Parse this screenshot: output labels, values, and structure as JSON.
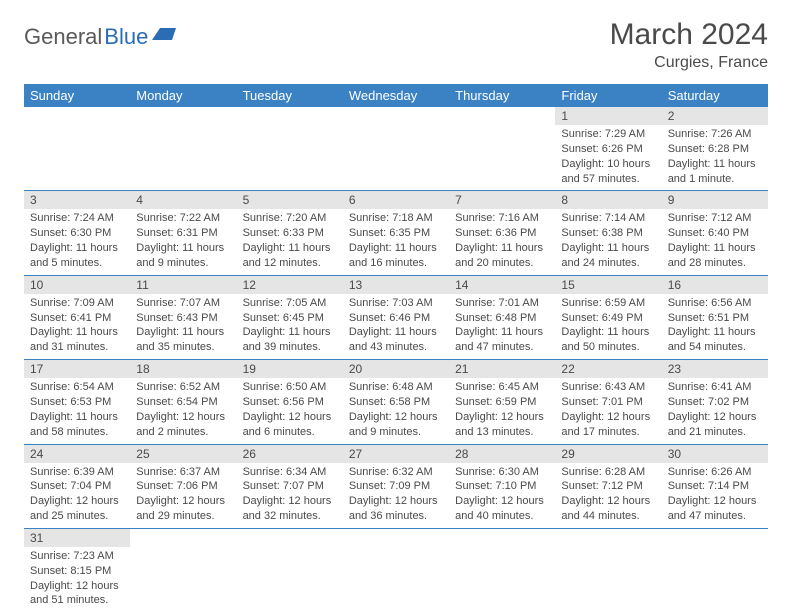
{
  "logo": {
    "general": "General",
    "blue": "Blue"
  },
  "title": "March 2024",
  "location": "Curgies, France",
  "colors": {
    "header_bg": "#3b82c4",
    "header_text": "#ffffff",
    "daynum_bg": "#e5e5e5",
    "text": "#4a4a4a",
    "border": "#3b82c4",
    "logo_blue": "#2a6db5"
  },
  "weekdays": [
    "Sunday",
    "Monday",
    "Tuesday",
    "Wednesday",
    "Thursday",
    "Friday",
    "Saturday"
  ],
  "weeks": [
    [
      {
        "day": "",
        "lines": []
      },
      {
        "day": "",
        "lines": []
      },
      {
        "day": "",
        "lines": []
      },
      {
        "day": "",
        "lines": []
      },
      {
        "day": "",
        "lines": []
      },
      {
        "day": "1",
        "lines": [
          "Sunrise: 7:29 AM",
          "Sunset: 6:26 PM",
          "Daylight: 10 hours and 57 minutes."
        ]
      },
      {
        "day": "2",
        "lines": [
          "Sunrise: 7:26 AM",
          "Sunset: 6:28 PM",
          "Daylight: 11 hours and 1 minute."
        ]
      }
    ],
    [
      {
        "day": "3",
        "lines": [
          "Sunrise: 7:24 AM",
          "Sunset: 6:30 PM",
          "Daylight: 11 hours and 5 minutes."
        ]
      },
      {
        "day": "4",
        "lines": [
          "Sunrise: 7:22 AM",
          "Sunset: 6:31 PM",
          "Daylight: 11 hours and 9 minutes."
        ]
      },
      {
        "day": "5",
        "lines": [
          "Sunrise: 7:20 AM",
          "Sunset: 6:33 PM",
          "Daylight: 11 hours and 12 minutes."
        ]
      },
      {
        "day": "6",
        "lines": [
          "Sunrise: 7:18 AM",
          "Sunset: 6:35 PM",
          "Daylight: 11 hours and 16 minutes."
        ]
      },
      {
        "day": "7",
        "lines": [
          "Sunrise: 7:16 AM",
          "Sunset: 6:36 PM",
          "Daylight: 11 hours and 20 minutes."
        ]
      },
      {
        "day": "8",
        "lines": [
          "Sunrise: 7:14 AM",
          "Sunset: 6:38 PM",
          "Daylight: 11 hours and 24 minutes."
        ]
      },
      {
        "day": "9",
        "lines": [
          "Sunrise: 7:12 AM",
          "Sunset: 6:40 PM",
          "Daylight: 11 hours and 28 minutes."
        ]
      }
    ],
    [
      {
        "day": "10",
        "lines": [
          "Sunrise: 7:09 AM",
          "Sunset: 6:41 PM",
          "Daylight: 11 hours and 31 minutes."
        ]
      },
      {
        "day": "11",
        "lines": [
          "Sunrise: 7:07 AM",
          "Sunset: 6:43 PM",
          "Daylight: 11 hours and 35 minutes."
        ]
      },
      {
        "day": "12",
        "lines": [
          "Sunrise: 7:05 AM",
          "Sunset: 6:45 PM",
          "Daylight: 11 hours and 39 minutes."
        ]
      },
      {
        "day": "13",
        "lines": [
          "Sunrise: 7:03 AM",
          "Sunset: 6:46 PM",
          "Daylight: 11 hours and 43 minutes."
        ]
      },
      {
        "day": "14",
        "lines": [
          "Sunrise: 7:01 AM",
          "Sunset: 6:48 PM",
          "Daylight: 11 hours and 47 minutes."
        ]
      },
      {
        "day": "15",
        "lines": [
          "Sunrise: 6:59 AM",
          "Sunset: 6:49 PM",
          "Daylight: 11 hours and 50 minutes."
        ]
      },
      {
        "day": "16",
        "lines": [
          "Sunrise: 6:56 AM",
          "Sunset: 6:51 PM",
          "Daylight: 11 hours and 54 minutes."
        ]
      }
    ],
    [
      {
        "day": "17",
        "lines": [
          "Sunrise: 6:54 AM",
          "Sunset: 6:53 PM",
          "Daylight: 11 hours and 58 minutes."
        ]
      },
      {
        "day": "18",
        "lines": [
          "Sunrise: 6:52 AM",
          "Sunset: 6:54 PM",
          "Daylight: 12 hours and 2 minutes."
        ]
      },
      {
        "day": "19",
        "lines": [
          "Sunrise: 6:50 AM",
          "Sunset: 6:56 PM",
          "Daylight: 12 hours and 6 minutes."
        ]
      },
      {
        "day": "20",
        "lines": [
          "Sunrise: 6:48 AM",
          "Sunset: 6:58 PM",
          "Daylight: 12 hours and 9 minutes."
        ]
      },
      {
        "day": "21",
        "lines": [
          "Sunrise: 6:45 AM",
          "Sunset: 6:59 PM",
          "Daylight: 12 hours and 13 minutes."
        ]
      },
      {
        "day": "22",
        "lines": [
          "Sunrise: 6:43 AM",
          "Sunset: 7:01 PM",
          "Daylight: 12 hours and 17 minutes."
        ]
      },
      {
        "day": "23",
        "lines": [
          "Sunrise: 6:41 AM",
          "Sunset: 7:02 PM",
          "Daylight: 12 hours and 21 minutes."
        ]
      }
    ],
    [
      {
        "day": "24",
        "lines": [
          "Sunrise: 6:39 AM",
          "Sunset: 7:04 PM",
          "Daylight: 12 hours and 25 minutes."
        ]
      },
      {
        "day": "25",
        "lines": [
          "Sunrise: 6:37 AM",
          "Sunset: 7:06 PM",
          "Daylight: 12 hours and 29 minutes."
        ]
      },
      {
        "day": "26",
        "lines": [
          "Sunrise: 6:34 AM",
          "Sunset: 7:07 PM",
          "Daylight: 12 hours and 32 minutes."
        ]
      },
      {
        "day": "27",
        "lines": [
          "Sunrise: 6:32 AM",
          "Sunset: 7:09 PM",
          "Daylight: 12 hours and 36 minutes."
        ]
      },
      {
        "day": "28",
        "lines": [
          "Sunrise: 6:30 AM",
          "Sunset: 7:10 PM",
          "Daylight: 12 hours and 40 minutes."
        ]
      },
      {
        "day": "29",
        "lines": [
          "Sunrise: 6:28 AM",
          "Sunset: 7:12 PM",
          "Daylight: 12 hours and 44 minutes."
        ]
      },
      {
        "day": "30",
        "lines": [
          "Sunrise: 6:26 AM",
          "Sunset: 7:14 PM",
          "Daylight: 12 hours and 47 minutes."
        ]
      }
    ],
    [
      {
        "day": "31",
        "lines": [
          "Sunrise: 7:23 AM",
          "Sunset: 8:15 PM",
          "Daylight: 12 hours and 51 minutes."
        ]
      },
      {
        "day": "",
        "lines": []
      },
      {
        "day": "",
        "lines": []
      },
      {
        "day": "",
        "lines": []
      },
      {
        "day": "",
        "lines": []
      },
      {
        "day": "",
        "lines": []
      },
      {
        "day": "",
        "lines": []
      }
    ]
  ]
}
